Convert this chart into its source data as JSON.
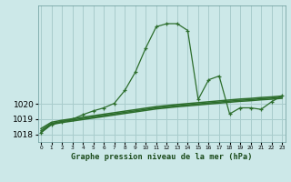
{
  "title": "Graphe pression niveau de la mer (hPa)",
  "background_color": "#cce8e8",
  "grid_color": "#a8cccc",
  "line_color": "#2d6e2d",
  "x_ticks": [
    0,
    1,
    2,
    3,
    4,
    5,
    6,
    7,
    8,
    9,
    10,
    11,
    12,
    13,
    14,
    15,
    16,
    17,
    18,
    19,
    20,
    21,
    22,
    23
  ],
  "ylim": [
    1017.5,
    1026.5
  ],
  "yticks": [
    1018,
    1019,
    1020
  ],
  "series_main": [
    1018.1,
    1018.65,
    1018.85,
    1019.0,
    1019.3,
    1019.55,
    1019.75,
    1020.05,
    1020.9,
    1022.1,
    1023.7,
    1025.1,
    1025.3,
    1025.3,
    1024.85,
    1020.3,
    1021.6,
    1021.85,
    1019.35,
    1019.75,
    1019.75,
    1019.65,
    1020.15,
    1020.55
  ],
  "series_line2": [
    1018.15,
    1018.65,
    1018.78,
    1018.88,
    1018.98,
    1019.08,
    1019.18,
    1019.28,
    1019.38,
    1019.48,
    1019.58,
    1019.68,
    1019.75,
    1019.82,
    1019.88,
    1019.94,
    1020.0,
    1020.06,
    1020.12,
    1020.18,
    1020.22,
    1020.28,
    1020.32,
    1020.38
  ],
  "series_line3": [
    1018.25,
    1018.72,
    1018.85,
    1018.95,
    1019.05,
    1019.15,
    1019.25,
    1019.35,
    1019.45,
    1019.55,
    1019.65,
    1019.75,
    1019.82,
    1019.89,
    1019.95,
    1020.01,
    1020.07,
    1020.13,
    1020.19,
    1020.25,
    1020.29,
    1020.35,
    1020.39,
    1020.45
  ],
  "series_line4": [
    1018.38,
    1018.8,
    1018.93,
    1019.03,
    1019.13,
    1019.23,
    1019.33,
    1019.43,
    1019.53,
    1019.63,
    1019.73,
    1019.83,
    1019.9,
    1019.97,
    1020.03,
    1020.09,
    1020.15,
    1020.21,
    1020.27,
    1020.33,
    1020.37,
    1020.43,
    1020.47,
    1020.53
  ]
}
